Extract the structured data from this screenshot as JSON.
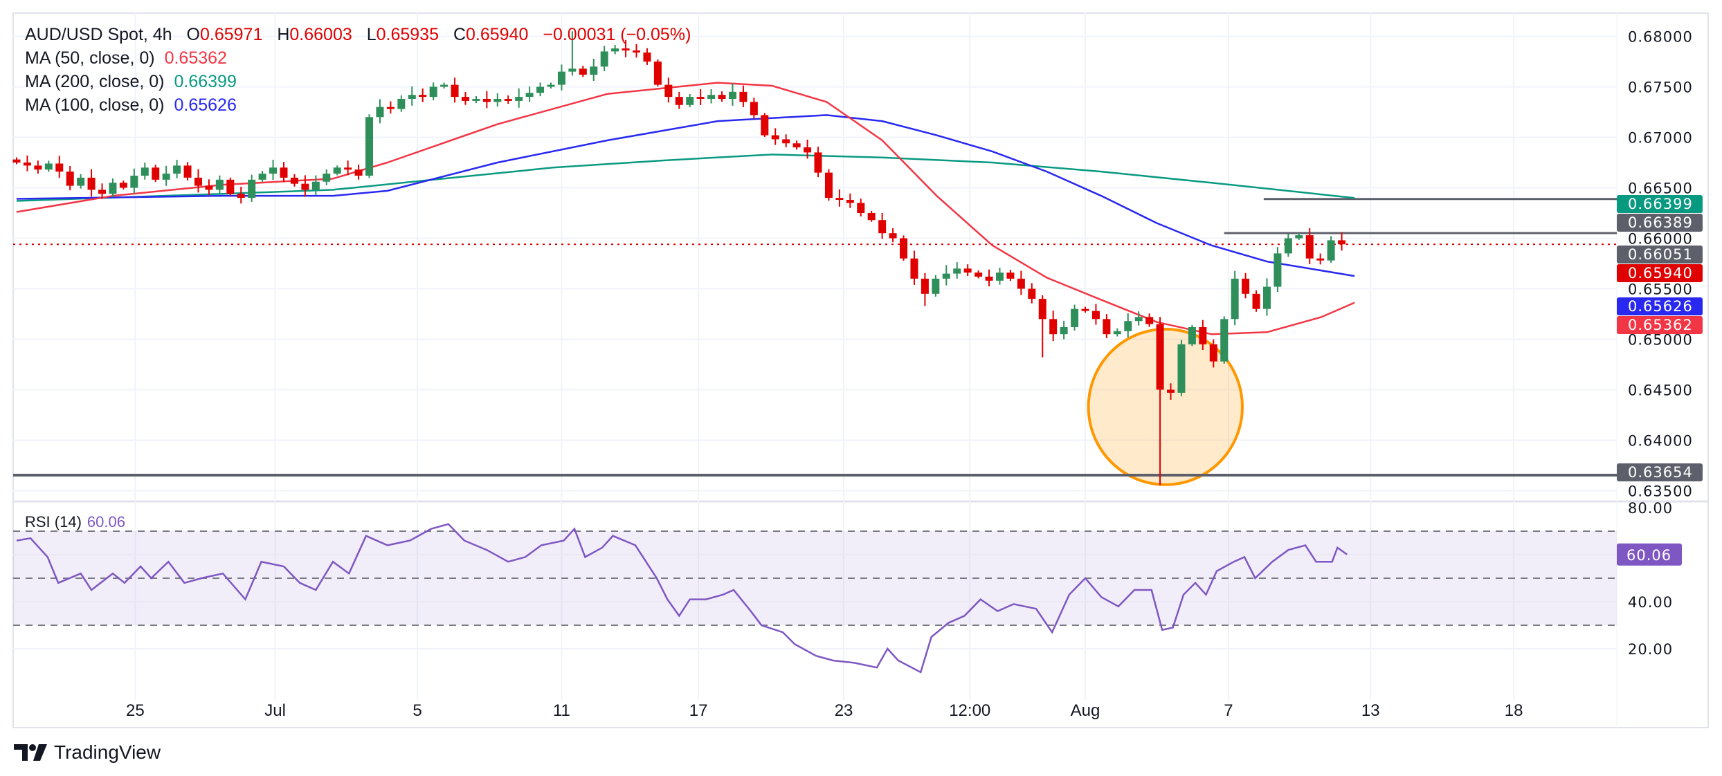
{
  "legend": {
    "symbol": "AUD/USD Spot, 4h",
    "o_label": "O",
    "o_value": "0.65971",
    "h_label": "H",
    "h_value": "0.66003",
    "l_label": "L",
    "l_value": "0.65935",
    "c_label": "C",
    "c_value": "0.65940",
    "change": "−0.00031 (−0.05%)",
    "ma50_label": "MA (50, close, 0)",
    "ma50_value": "0.65362",
    "ma200_label": "MA (200, close, 0)",
    "ma200_value": "0.66399",
    "ma100_label": "MA (100, close, 0)",
    "ma100_value": "0.65626",
    "rsi_label": "RSI (14)",
    "rsi_value": "60.06"
  },
  "colors": {
    "up": "#2f8f5b",
    "down": "#e00000",
    "ma50": "#f23645",
    "ma100": "#2828f0",
    "ma200": "#089981",
    "rsi": "#7e57c2",
    "level": "#5d606b",
    "annotation": "#ff9800"
  },
  "branding": {
    "logo_text": "TradingView"
  },
  "chart_data": {
    "type": "candlestick",
    "title": "AUD/USD Spot, 4h",
    "ylim": [
      0.6325,
      0.6825
    ],
    "y_ticks": [
      "0.68000",
      "0.67500",
      "0.67000",
      "0.66500",
      "0.66000",
      "0.65500",
      "0.65000",
      "0.64500",
      "0.64000",
      "0.63500"
    ],
    "x_ticks": [
      {
        "label": "25",
        "index": 11.1
      },
      {
        "label": "Jul",
        "index": 24.2
      },
      {
        "label": "5",
        "index": 37.5
      },
      {
        "label": "11",
        "index": 51
      },
      {
        "label": "17",
        "index": 63.8
      },
      {
        "label": "23",
        "index": 77.4
      },
      {
        "label": "12:00",
        "index": 89.2
      },
      {
        "label": "Aug",
        "index": 100
      },
      {
        "label": "7",
        "index": 113.4
      },
      {
        "label": "13",
        "index": 126.7
      },
      {
        "label": "18",
        "index": 140.1
      }
    ],
    "first_open": 0.6678,
    "close": [
      0.6675,
      0.6672,
      0.6668,
      0.6674,
      0.6666,
      0.6652,
      0.666,
      0.6648,
      0.6644,
      0.6655,
      0.665,
      0.6662,
      0.667,
      0.6658,
      0.6664,
      0.6672,
      0.666,
      0.6652,
      0.6648,
      0.6658,
      0.6644,
      0.664,
      0.6658,
      0.6664,
      0.667,
      0.666,
      0.6654,
      0.6648,
      0.6656,
      0.6664,
      0.667,
      0.6668,
      0.6662,
      0.672,
      0.673,
      0.6728,
      0.6738,
      0.6742,
      0.674,
      0.675,
      0.6752,
      0.674,
      0.6736,
      0.6738,
      0.6735,
      0.6738,
      0.6736,
      0.674,
      0.6744,
      0.675,
      0.6752,
      0.6765,
      0.6768,
      0.6762,
      0.677,
      0.6785,
      0.6788,
      0.6786,
      0.6784,
      0.6775,
      0.6752,
      0.674,
      0.6732,
      0.674,
      0.6738,
      0.6742,
      0.6738,
      0.6745,
      0.6735,
      0.6722,
      0.6702,
      0.6698,
      0.6694,
      0.669,
      0.6685,
      0.6665,
      0.664,
      0.6638,
      0.6635,
      0.6625,
      0.6618,
      0.6605,
      0.66,
      0.658,
      0.656,
      0.6545,
      0.656,
      0.6565,
      0.657,
      0.6566,
      0.6562,
      0.6558,
      0.6566,
      0.656,
      0.655,
      0.654,
      0.652,
      0.6505,
      0.6512,
      0.653,
      0.6528,
      0.652,
      0.6505,
      0.6508,
      0.6518,
      0.6522,
      0.6515,
      0.645,
      0.6447,
      0.6495,
      0.6512,
      0.6495,
      0.6478,
      0.652,
      0.656,
      0.6545,
      0.653,
      0.6552,
      0.6585,
      0.66,
      0.6603,
      0.658,
      0.6578,
      0.6598,
      0.6594
    ],
    "default_wick": 0.0007,
    "wick_overrides": [
      {
        "index": 52,
        "high": 0.6805
      },
      {
        "index": 85,
        "low": 0.6533
      },
      {
        "index": 96,
        "low": 0.6482
      },
      {
        "index": 107,
        "high": 0.6522,
        "low": 0.63555
      },
      {
        "index": 108,
        "low": 0.644
      },
      {
        "index": 112,
        "low": 0.6472
      },
      {
        "index": 120,
        "high": 0.66051
      },
      {
        "index": 123,
        "high": 0.6602
      }
    ],
    "ma50": [
      [
        0,
        0.6626
      ],
      [
        9,
        0.6642
      ],
      [
        19.3,
        0.6653
      ],
      [
        29.6,
        0.6659
      ],
      [
        34.7,
        0.6675
      ],
      [
        45,
        0.6713
      ],
      [
        55.3,
        0.6743
      ],
      [
        65.6,
        0.6754
      ],
      [
        70.7,
        0.6751
      ],
      [
        75.8,
        0.6735
      ],
      [
        81,
        0.6697
      ],
      [
        86.1,
        0.6642
      ],
      [
        91.3,
        0.6593
      ],
      [
        96.4,
        0.6561
      ],
      [
        101.5,
        0.6539
      ],
      [
        106.7,
        0.6517
      ],
      [
        111.8,
        0.6505
      ],
      [
        117,
        0.6507
      ],
      [
        122.1,
        0.6522
      ],
      [
        125.2,
        0.65362
      ]
    ],
    "ma100": [
      [
        0,
        0.6639
      ],
      [
        19.3,
        0.6642
      ],
      [
        29.6,
        0.6642
      ],
      [
        34.7,
        0.6647
      ],
      [
        45,
        0.6675
      ],
      [
        55.3,
        0.6697
      ],
      [
        65.6,
        0.6716
      ],
      [
        75.8,
        0.6722
      ],
      [
        81,
        0.6716
      ],
      [
        86.1,
        0.6702
      ],
      [
        91.3,
        0.6686
      ],
      [
        96.4,
        0.6666
      ],
      [
        101.5,
        0.6642
      ],
      [
        106.7,
        0.6615
      ],
      [
        111.8,
        0.6593
      ],
      [
        117,
        0.6577
      ],
      [
        125.2,
        0.65626
      ]
    ],
    "ma200": [
      [
        0,
        0.6637
      ],
      [
        19.3,
        0.6644
      ],
      [
        29.6,
        0.6648
      ],
      [
        39.9,
        0.6659
      ],
      [
        50.2,
        0.667
      ],
      [
        60.4,
        0.6677
      ],
      [
        70.7,
        0.6683
      ],
      [
        81,
        0.668
      ],
      [
        91.3,
        0.6675
      ],
      [
        101.5,
        0.6666
      ],
      [
        111.8,
        0.6655
      ],
      [
        125.2,
        0.66399
      ]
    ],
    "levels": [
      {
        "price": 0.66389,
        "from_index": 116.7,
        "label": "0.66389"
      },
      {
        "price": 0.66051,
        "from_index": 113,
        "label": "0.66051"
      },
      {
        "price": 0.63654,
        "from_index": -2,
        "label": "0.63654"
      }
    ],
    "last_price": {
      "price": 0.6594,
      "label": "0.65940"
    },
    "badges": [
      {
        "label": "0.66399",
        "color": "#089981"
      },
      {
        "label": "0.66389",
        "color": "#5d606b"
      },
      {
        "label": "0.66051",
        "color": "#5d606b"
      },
      {
        "label": "0.65940",
        "color": "#e00000"
      },
      {
        "label": "0.65626",
        "color": "#2828f0"
      },
      {
        "label": "0.65362",
        "color": "#f23645"
      },
      {
        "label": "0.63654",
        "color": "#5d606b"
      }
    ],
    "annotation": {
      "type": "circle",
      "center_index": 107.5,
      "center_price": 0.6433,
      "radius_index": 7.2,
      "radius_price": 0.0077
    },
    "rsi": {
      "period": 14,
      "ylim": [
        0,
        100
      ],
      "y_ticks": [
        "80.00",
        "40.00",
        "20.00"
      ],
      "levels": [
        70,
        50,
        30
      ],
      "last": "60.06",
      "values": [
        [
          0,
          66
        ],
        [
          1.3,
          67
        ],
        [
          2.9,
          59
        ],
        [
          3.9,
          48
        ],
        [
          6,
          52
        ],
        [
          7,
          45
        ],
        [
          9,
          52
        ],
        [
          10.1,
          48
        ],
        [
          11.6,
          55
        ],
        [
          12.6,
          50
        ],
        [
          14.2,
          57
        ],
        [
          15.7,
          48
        ],
        [
          17.3,
          50
        ],
        [
          19.3,
          52
        ],
        [
          21.4,
          41
        ],
        [
          22.9,
          57
        ],
        [
          25,
          55
        ],
        [
          26.5,
          48
        ],
        [
          28,
          45
        ],
        [
          29.6,
          57
        ],
        [
          31.1,
          52
        ],
        [
          32.7,
          68
        ],
        [
          34.7,
          64
        ],
        [
          36.8,
          66
        ],
        [
          38.8,
          71
        ],
        [
          40.4,
          73
        ],
        [
          41.9,
          66
        ],
        [
          44,
          62
        ],
        [
          46,
          57
        ],
        [
          47.6,
          59
        ],
        [
          49.1,
          64
        ],
        [
          51.2,
          66
        ],
        [
          52.2,
          71
        ],
        [
          53.2,
          59
        ],
        [
          54.8,
          63
        ],
        [
          55.8,
          68
        ],
        [
          57.9,
          64
        ],
        [
          59.9,
          50
        ],
        [
          60.9,
          41
        ],
        [
          62,
          34
        ],
        [
          63,
          41
        ],
        [
          64.5,
          41
        ],
        [
          66.1,
          43
        ],
        [
          67.1,
          45
        ],
        [
          68.7,
          36
        ],
        [
          69.7,
          30
        ],
        [
          71.7,
          27
        ],
        [
          72.8,
          22
        ],
        [
          74.8,
          17
        ],
        [
          76.4,
          15
        ],
        [
          78.4,
          14
        ],
        [
          80.5,
          12
        ],
        [
          81.5,
          20
        ],
        [
          82.5,
          15
        ],
        [
          84.6,
          10
        ],
        [
          85.6,
          25
        ],
        [
          87.2,
          31
        ],
        [
          88.7,
          34
        ],
        [
          90.2,
          41
        ],
        [
          91.8,
          36
        ],
        [
          93.3,
          39
        ],
        [
          95.4,
          37
        ],
        [
          96.9,
          27
        ],
        [
          98.5,
          43
        ],
        [
          100,
          50
        ],
        [
          101.5,
          42
        ],
        [
          103.1,
          38
        ],
        [
          104.6,
          45
        ],
        [
          106.2,
          45
        ],
        [
          107.2,
          28
        ],
        [
          108.2,
          29
        ],
        [
          109.2,
          43
        ],
        [
          110.3,
          48
        ],
        [
          111.3,
          43
        ],
        [
          112.3,
          53
        ],
        [
          113.9,
          57
        ],
        [
          114.9,
          59
        ],
        [
          115.9,
          50
        ],
        [
          117.5,
          57
        ],
        [
          119,
          62
        ],
        [
          120.6,
          64
        ],
        [
          121.6,
          57
        ],
        [
          123.1,
          57
        ],
        [
          123.6,
          63
        ],
        [
          124.5,
          60.06
        ]
      ]
    }
  }
}
